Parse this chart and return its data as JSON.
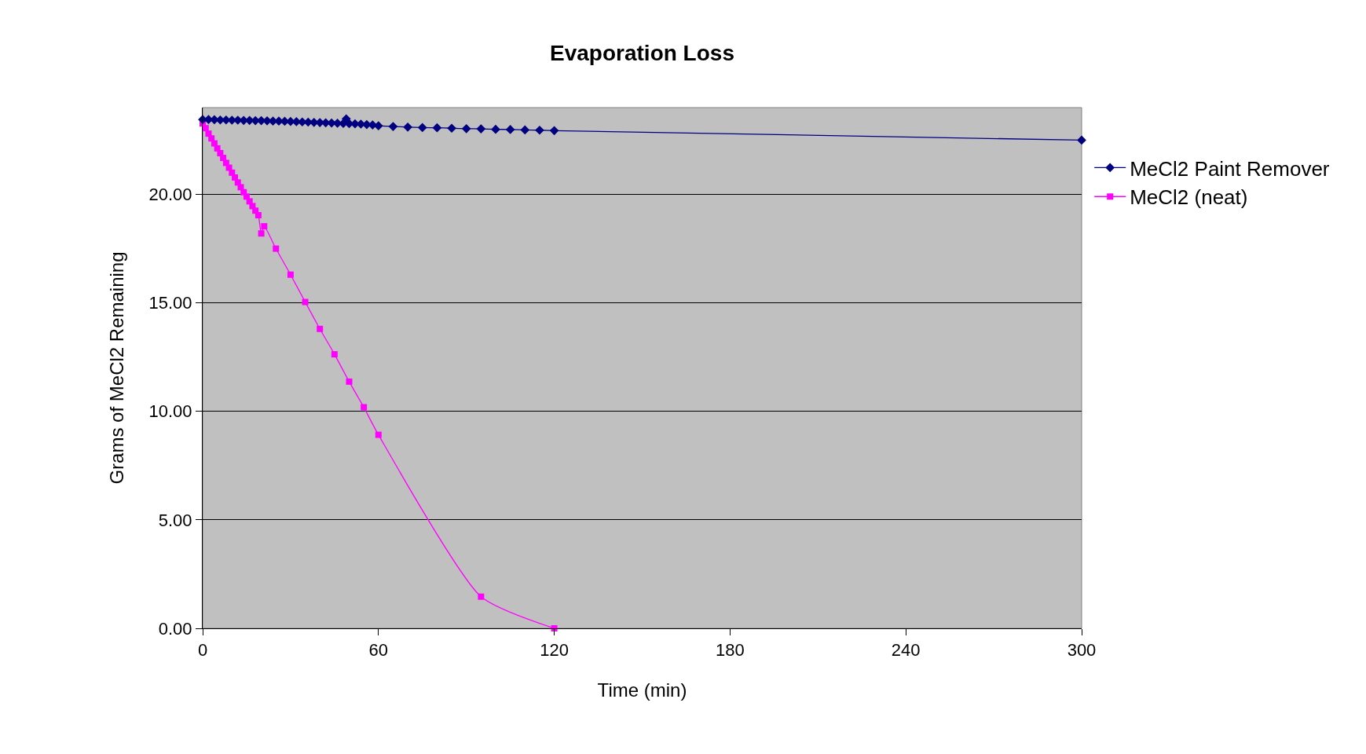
{
  "chart_data": {
    "type": "line",
    "title": "Evaporation Loss",
    "xlabel": "Time (min)",
    "ylabel": "Grams of MeCl2 Remaining",
    "xlim": [
      0,
      300
    ],
    "xticks": [
      0,
      60,
      120,
      180,
      240,
      300
    ],
    "ylim": [
      0,
      24
    ],
    "yticks": [
      {
        "value": 0,
        "label": "0.00"
      },
      {
        "value": 5,
        "label": "5.00"
      },
      {
        "value": 10,
        "label": "10.00"
      },
      {
        "value": 15,
        "label": "15.00"
      },
      {
        "value": 20,
        "label": "20.00"
      }
    ],
    "grid": "y",
    "legend": "right",
    "line_style": "solid",
    "series": [
      {
        "name": "MeCl2 Paint Remover",
        "color": "#000080",
        "marker": "diamond",
        "x": [
          0,
          2,
          4,
          6,
          8,
          10,
          12,
          14,
          16,
          18,
          20,
          22,
          24,
          26,
          28,
          30,
          32,
          34,
          36,
          38,
          40,
          42,
          44,
          46,
          48,
          49,
          50,
          52,
          54,
          56,
          58,
          60,
          65,
          70,
          75,
          80,
          85,
          90,
          95,
          100,
          105,
          110,
          115,
          120,
          300
        ],
        "values": [
          23.45,
          23.45,
          23.44,
          23.43,
          23.43,
          23.42,
          23.42,
          23.41,
          23.41,
          23.4,
          23.4,
          23.39,
          23.38,
          23.38,
          23.37,
          23.36,
          23.35,
          23.34,
          23.33,
          23.32,
          23.31,
          23.3,
          23.29,
          23.28,
          23.27,
          23.48,
          23.26,
          23.25,
          23.24,
          23.22,
          23.2,
          23.16,
          23.13,
          23.1,
          23.08,
          23.07,
          23.05,
          23.03,
          23.02,
          23.0,
          22.99,
          22.97,
          22.96,
          22.94,
          22.5
        ]
      },
      {
        "name": "MeCl2 (neat)",
        "color": "#ff00ff",
        "marker": "square",
        "x": [
          0,
          1,
          2,
          3,
          4,
          5,
          6,
          7,
          8,
          9,
          10,
          11,
          12,
          13,
          14,
          15,
          16,
          17,
          18,
          19,
          20,
          21,
          25,
          30,
          35,
          40,
          45,
          50,
          55,
          60,
          95,
          120
        ],
        "values": [
          23.27,
          23.05,
          22.8,
          22.58,
          22.35,
          22.12,
          21.9,
          21.68,
          21.45,
          21.23,
          21.0,
          20.78,
          20.55,
          20.33,
          20.1,
          19.9,
          19.68,
          19.46,
          19.25,
          19.04,
          18.2,
          18.53,
          17.5,
          16.3,
          15.04,
          13.8,
          12.63,
          11.37,
          10.19,
          8.92,
          1.46,
          0
        ]
      }
    ]
  }
}
